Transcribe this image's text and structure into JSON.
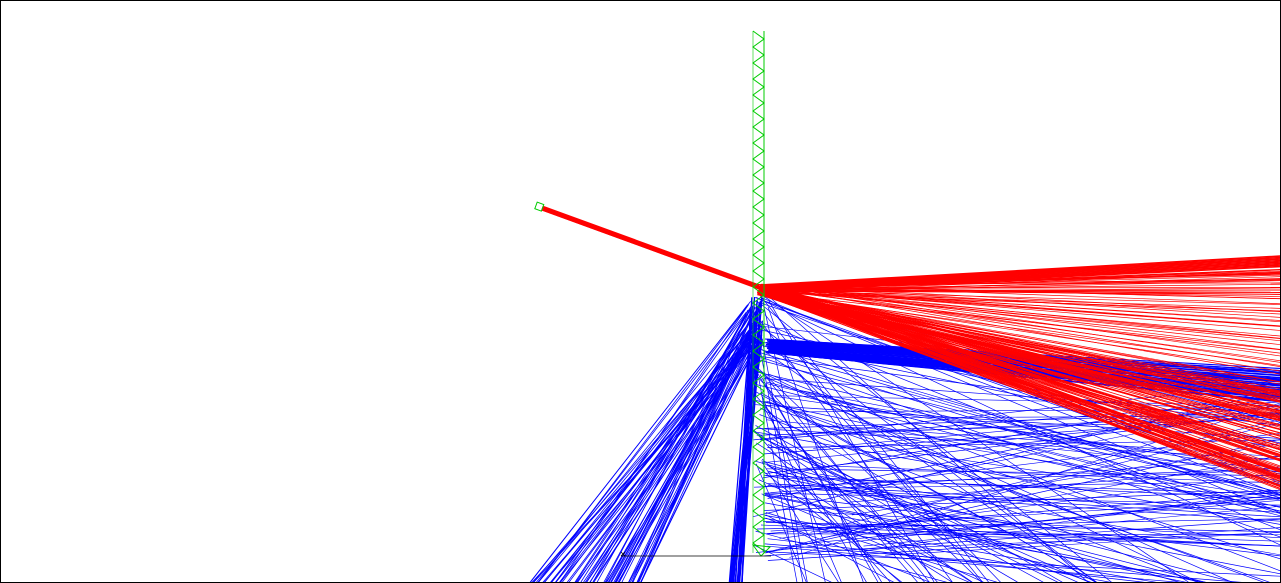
{
  "viewport": {
    "background": "#ffffff",
    "border_color": "#000000"
  },
  "colors": {
    "red_lines": "#ff0000",
    "blue_lines": "#0000ff",
    "green_structure": "#00cc00",
    "axis": "#000000"
  }
}
